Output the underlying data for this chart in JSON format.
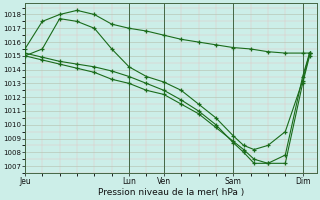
{
  "title": "Pression niveau de la mer( hPa )",
  "bg_color": "#cceee8",
  "line_color": "#1a6b1a",
  "ylim": [
    1006.5,
    1018.8
  ],
  "yticks": [
    1007,
    1008,
    1009,
    1010,
    1011,
    1012,
    1013,
    1014,
    1015,
    1016,
    1017,
    1018
  ],
  "xtick_labels": [
    "Jeu",
    "Lun",
    "Ven",
    "Sam",
    "Dim"
  ],
  "xtick_positions": [
    0.0,
    3.0,
    4.0,
    6.0,
    8.0
  ],
  "xmax": 8.4,
  "line1_x": [
    0.0,
    0.5,
    1.0,
    1.5,
    2.0,
    2.5,
    3.0,
    3.5,
    4.0,
    4.5,
    5.0,
    5.5,
    6.0,
    6.5,
    7.0,
    7.5,
    8.0,
    8.2
  ],
  "line1_y": [
    1015.5,
    1017.5,
    1018.0,
    1018.3,
    1018.0,
    1017.3,
    1017.0,
    1016.8,
    1016.5,
    1016.2,
    1016.0,
    1015.8,
    1015.6,
    1015.5,
    1015.3,
    1015.2,
    1015.2,
    1015.2
  ],
  "line2_x": [
    0.0,
    0.5,
    1.0,
    1.5,
    2.0,
    2.5,
    3.0,
    3.5,
    4.0,
    4.5,
    5.0,
    5.5,
    6.0,
    6.3,
    6.6,
    7.0,
    7.5,
    8.0,
    8.2
  ],
  "line2_y": [
    1015.0,
    1015.5,
    1017.7,
    1017.5,
    1017.0,
    1015.5,
    1014.2,
    1013.5,
    1013.1,
    1012.5,
    1011.5,
    1010.5,
    1009.2,
    1008.5,
    1008.2,
    1008.5,
    1009.5,
    1013.2,
    1015.2
  ],
  "line3_x": [
    0.0,
    0.5,
    1.0,
    1.5,
    2.0,
    2.5,
    3.0,
    3.5,
    4.0,
    4.5,
    5.0,
    5.5,
    6.0,
    6.3,
    6.6,
    7.0,
    7.5,
    8.0,
    8.2
  ],
  "line3_y": [
    1015.0,
    1014.7,
    1014.4,
    1014.1,
    1013.8,
    1013.3,
    1013.0,
    1012.5,
    1012.2,
    1011.5,
    1010.8,
    1009.8,
    1008.8,
    1008.2,
    1007.5,
    1007.2,
    1007.2,
    1013.0,
    1015.0
  ],
  "line4_x": [
    0.0,
    0.5,
    1.0,
    1.5,
    2.0,
    2.5,
    3.0,
    3.5,
    4.0,
    4.5,
    5.0,
    5.5,
    6.0,
    6.3,
    6.6,
    7.0,
    7.5,
    8.0,
    8.2
  ],
  "line4_y": [
    1015.2,
    1014.9,
    1014.6,
    1014.4,
    1014.2,
    1013.9,
    1013.5,
    1013.0,
    1012.5,
    1011.8,
    1011.0,
    1010.0,
    1008.7,
    1008.0,
    1007.2,
    1007.2,
    1007.8,
    1013.5,
    1015.2
  ]
}
